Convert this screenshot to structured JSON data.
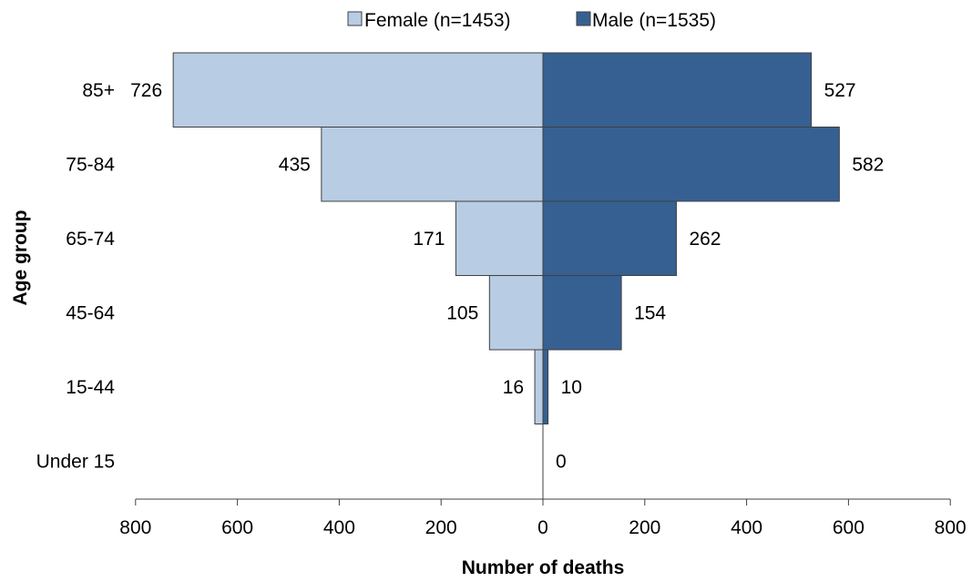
{
  "chart_data": {
    "type": "bar",
    "orientation": "horizontal",
    "layout": "population-pyramid",
    "categories": [
      "85+",
      "75-84",
      "65-74",
      "45-64",
      "15-44",
      "Under 15"
    ],
    "series": [
      {
        "name": "Female (n=1453)",
        "direction": "left",
        "color": "#b8cce4",
        "values": [
          726,
          435,
          171,
          105,
          16,
          0
        ]
      },
      {
        "name": "Male (n=1535)",
        "direction": "right",
        "color": "#366092",
        "values": [
          527,
          582,
          262,
          154,
          10,
          0
        ]
      }
    ],
    "data_labels": {
      "female": [
        "726",
        "435",
        "171",
        "105",
        "16",
        ""
      ],
      "male": [
        "527",
        "582",
        "262",
        "154",
        "10",
        "0"
      ]
    },
    "x_ticks": [
      "800",
      "600",
      "400",
      "200",
      "0",
      "200",
      "400",
      "600",
      "800"
    ],
    "xlim": [
      -800,
      800
    ],
    "xlabel": "Number of deaths",
    "ylabel": "Age group",
    "grid": false,
    "legend_position": "top-center",
    "bar_edge_color": "#404040",
    "axis_color": "#404040"
  }
}
